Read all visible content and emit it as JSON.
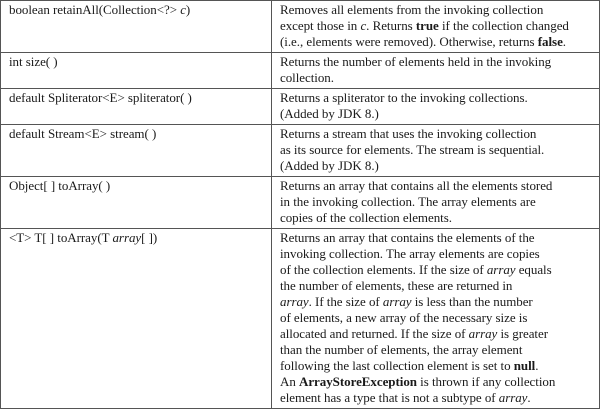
{
  "rows": [
    {
      "method": [
        "boolean retainAll(Collection<?> ",
        "c",
        ")"
      ],
      "desc": [
        [
          "Removes all elements from the invoking collection"
        ],
        [
          "except those in ",
          "c",
          ". Returns ",
          "true",
          " if the collection changed"
        ],
        [
          "(i.e., elements were removed). Otherwise, returns ",
          "false",
          "."
        ]
      ]
    },
    {
      "method": [
        "int size( )"
      ],
      "desc": [
        [
          "Returns the number of elements held in the invoking"
        ],
        [
          "collection."
        ]
      ]
    },
    {
      "method": [
        "default Spliterator<E> spliterator( )"
      ],
      "desc": [
        [
          "Returns a spliterator to the invoking collections."
        ],
        [
          "(Added by JDK 8.)"
        ]
      ]
    },
    {
      "method": [
        "default Stream<E> stream( )"
      ],
      "desc": [
        [
          "Returns a stream that uses the invoking collection"
        ],
        [
          "as its source for elements. The stream is sequential."
        ],
        [
          "(Added by JDK 8.)"
        ]
      ]
    },
    {
      "method": [
        "Object[ ] toArray( )"
      ],
      "desc": [
        [
          "Returns an array that contains all the elements stored"
        ],
        [
          "in the invoking collection. The array elements are"
        ],
        [
          "copies of the collection elements."
        ]
      ]
    },
    {
      "method": [
        "<T> T[ ] toArray(T ",
        "array",
        "[ ])"
      ],
      "desc": [
        [
          "Returns an array that contains the elements of the"
        ],
        [
          "invoking collection. The array elements are copies"
        ],
        [
          "of the collection elements. If the size of ",
          "array",
          " equals"
        ],
        [
          "the number of elements, these are returned in"
        ],
        [
          "array",
          ". If the size of ",
          "array",
          " is less than the number"
        ],
        [
          "of elements, a new array of the necessary size is"
        ],
        [
          "allocated and returned. If the size of ",
          "array",
          " is greater"
        ],
        [
          "than the number of elements, the array element"
        ],
        [
          "following the last collection element is set to ",
          "null",
          "."
        ],
        [
          "An ",
          "ArrayStoreException",
          " is thrown if any collection"
        ],
        [
          "element has a type that is not a subtype of ",
          "array",
          "."
        ]
      ]
    }
  ]
}
